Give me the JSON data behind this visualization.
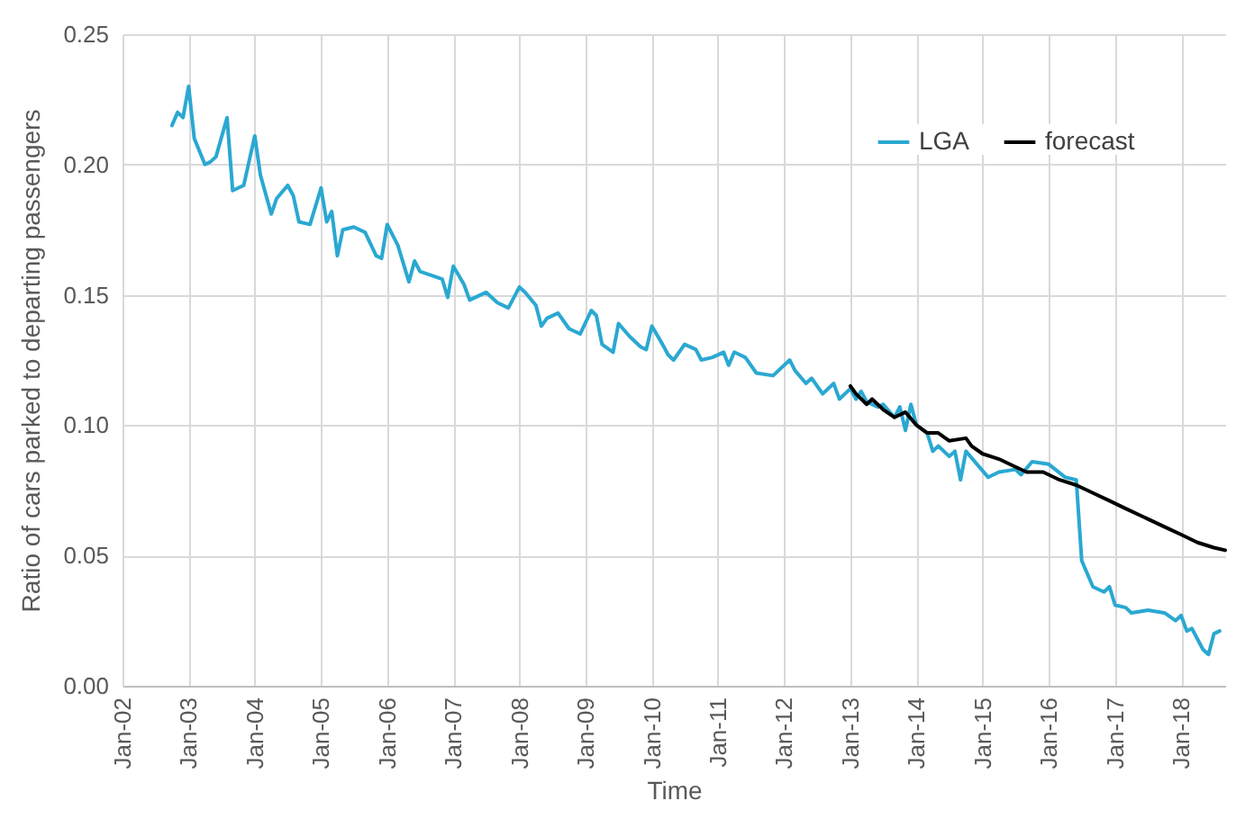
{
  "chart_data": {
    "type": "line",
    "xlabel": "Time",
    "ylabel": "Ratio of cars parked to departing passengers",
    "xlim": [
      "2002-01",
      "2018-09"
    ],
    "ylim": [
      0,
      0.25
    ],
    "xticks": [
      {
        "value": "2002-01",
        "label": "Jan-02"
      },
      {
        "value": "2003-01",
        "label": "Jan-03"
      },
      {
        "value": "2004-01",
        "label": "Jan-04"
      },
      {
        "value": "2005-01",
        "label": "Jan-05"
      },
      {
        "value": "2006-01",
        "label": "Jan-06"
      },
      {
        "value": "2007-01",
        "label": "Jan-07"
      },
      {
        "value": "2008-01",
        "label": "Jan-08"
      },
      {
        "value": "2009-01",
        "label": "Jan-09"
      },
      {
        "value": "2010-01",
        "label": "Jan-10"
      },
      {
        "value": "2011-01",
        "label": "Jan-11"
      },
      {
        "value": "2012-01",
        "label": "Jan-12"
      },
      {
        "value": "2013-01",
        "label": "Jan-13"
      },
      {
        "value": "2014-01",
        "label": "Jan-14"
      },
      {
        "value": "2015-01",
        "label": "Jan-15"
      },
      {
        "value": "2016-01",
        "label": "Jan-16"
      },
      {
        "value": "2017-01",
        "label": "Jan-17"
      },
      {
        "value": "2018-01",
        "label": "Jan-18"
      }
    ],
    "yticks": [
      {
        "value": 0,
        "label": "0.00"
      },
      {
        "value": 0.05,
        "label": "0.05"
      },
      {
        "value": 0.1,
        "label": "0.10"
      },
      {
        "value": 0.15,
        "label": "0.15"
      },
      {
        "value": 0.2,
        "label": "0.20"
      },
      {
        "value": 0.25,
        "label": "0.25"
      }
    ],
    "grid": true,
    "legend": "top right",
    "line_style": "solid",
    "marker": "none",
    "series": [
      {
        "name": "LGA",
        "color": "#2aa8d2",
        "x": [
          "2002-10",
          "2002-11",
          "2002-12",
          "2003-01",
          "2003-02",
          "2003-04",
          "2003-05",
          "2003-06",
          "2003-08",
          "2003-09",
          "2003-11",
          "2004-01",
          "2004-02",
          "2004-04",
          "2004-05",
          "2004-07",
          "2004-08",
          "2004-09",
          "2004-11",
          "2005-01",
          "2005-02",
          "2005-03",
          "2005-04",
          "2005-05",
          "2005-07",
          "2005-09",
          "2005-11",
          "2005-12",
          "2006-01",
          "2006-03",
          "2006-05",
          "2006-06",
          "2006-07",
          "2006-11",
          "2006-12",
          "2007-01",
          "2007-03",
          "2007-04",
          "2007-06",
          "2007-07",
          "2007-09",
          "2007-11",
          "2008-01",
          "2008-02",
          "2008-04",
          "2008-05",
          "2008-06",
          "2008-08",
          "2008-10",
          "2008-12",
          "2009-02",
          "2009-03",
          "2009-04",
          "2009-06",
          "2009-07",
          "2009-09",
          "2009-11",
          "2009-12",
          "2010-01",
          "2010-03",
          "2010-04",
          "2010-05",
          "2010-07",
          "2010-09",
          "2010-10",
          "2010-12",
          "2011-02",
          "2011-03",
          "2011-04",
          "2011-06",
          "2011-08",
          "2011-11",
          "2012-02",
          "2012-03",
          "2012-05",
          "2012-06",
          "2012-08",
          "2012-10",
          "2012-11",
          "2013-01",
          "2013-02",
          "2013-03",
          "2013-04",
          "2013-06",
          "2013-07",
          "2013-09",
          "2013-10",
          "2013-11",
          "2013-12",
          "2014-01",
          "2014-03",
          "2014-04",
          "2014-05",
          "2014-07",
          "2014-08",
          "2014-09",
          "2014-10",
          "2014-12",
          "2015-02",
          "2015-04",
          "2015-07",
          "2015-08",
          "2015-10",
          "2016-01",
          "2016-04",
          "2016-06",
          "2016-07",
          "2016-09",
          "2016-11",
          "2016-12",
          "2017-01",
          "2017-03",
          "2017-04",
          "2017-07",
          "2017-10",
          "2017-12",
          "2018-01",
          "2018-02",
          "2018-03",
          "2018-05",
          "2018-06",
          "2018-07",
          "2018-08"
        ],
        "values": [
          0.215,
          0.22,
          0.218,
          0.23,
          0.21,
          0.2,
          0.201,
          0.203,
          0.218,
          0.19,
          0.192,
          0.211,
          0.196,
          0.181,
          0.187,
          0.192,
          0.188,
          0.178,
          0.177,
          0.191,
          0.178,
          0.182,
          0.165,
          0.175,
          0.176,
          0.174,
          0.165,
          0.164,
          0.177,
          0.169,
          0.155,
          0.163,
          0.159,
          0.156,
          0.149,
          0.161,
          0.154,
          0.148,
          0.15,
          0.151,
          0.147,
          0.145,
          0.153,
          0.151,
          0.146,
          0.138,
          0.141,
          0.143,
          0.137,
          0.135,
          0.144,
          0.142,
          0.131,
          0.128,
          0.139,
          0.134,
          0.13,
          0.129,
          0.138,
          0.131,
          0.127,
          0.125,
          0.131,
          0.129,
          0.125,
          0.126,
          0.128,
          0.123,
          0.128,
          0.126,
          0.12,
          0.119,
          0.125,
          0.121,
          0.116,
          0.118,
          0.112,
          0.116,
          0.11,
          0.114,
          0.11,
          0.113,
          0.109,
          0.107,
          0.108,
          0.103,
          0.107,
          0.098,
          0.108,
          0.1,
          0.097,
          0.09,
          0.092,
          0.088,
          0.09,
          0.079,
          0.09,
          0.085,
          0.08,
          0.082,
          0.083,
          0.081,
          0.086,
          0.085,
          0.08,
          0.079,
          0.048,
          0.038,
          0.036,
          0.038,
          0.031,
          0.03,
          0.028,
          0.029,
          0.028,
          0.025,
          0.027,
          0.021,
          0.022,
          0.014,
          0.012,
          0.02,
          0.021
        ]
      },
      {
        "name": "forecast",
        "color": "#000000",
        "x": [
          "2013-01",
          "2013-02",
          "2013-04",
          "2013-05",
          "2013-07",
          "2013-09",
          "2013-11",
          "2014-01",
          "2014-03",
          "2014-05",
          "2014-07",
          "2014-10",
          "2014-11",
          "2015-01",
          "2015-04",
          "2015-07",
          "2015-09",
          "2015-12",
          "2016-03",
          "2016-06",
          "2016-09",
          "2016-12",
          "2017-03",
          "2017-07",
          "2017-10",
          "2018-01",
          "2018-04",
          "2018-07",
          "2018-09"
        ],
        "values": [
          0.115,
          0.112,
          0.108,
          0.11,
          0.106,
          0.103,
          0.105,
          0.1,
          0.097,
          0.097,
          0.094,
          0.095,
          0.092,
          0.089,
          0.087,
          0.084,
          0.082,
          0.082,
          0.079,
          0.077,
          0.074,
          0.071,
          0.068,
          0.064,
          0.061,
          0.058,
          0.055,
          0.053,
          0.052
        ]
      }
    ]
  }
}
